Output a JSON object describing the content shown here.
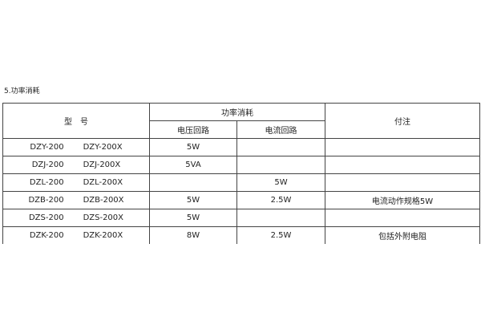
{
  "title": "5.功率消耗",
  "header": {
    "model": "型　号",
    "power": "功率消耗",
    "voltage": "电压回路",
    "current": "电流回路",
    "note": "付注"
  },
  "rows": [
    {
      "m1": "DZY-200",
      "m2": "DZY-200X",
      "v": "5W",
      "c": "",
      "n": ""
    },
    {
      "m1": "DZJ-200",
      "m2": "DZJ-200X",
      "v": "5VA",
      "c": "",
      "n": ""
    },
    {
      "m1": "DZL-200",
      "m2": "DZL-200X",
      "v": "",
      "c": "5W",
      "n": ""
    },
    {
      "m1": "DZB-200",
      "m2": "DZB-200X",
      "v": "5W",
      "c": "2.5W",
      "n": "电流动作规格5W"
    },
    {
      "m1": "DZS-200",
      "m2": "DZS-200X",
      "v": "5W",
      "c": "",
      "n": ""
    },
    {
      "m1": "DZK-200",
      "m2": "DZK-200X",
      "v": "8W",
      "c": "2.5W",
      "n": "包括外附电阻"
    }
  ]
}
